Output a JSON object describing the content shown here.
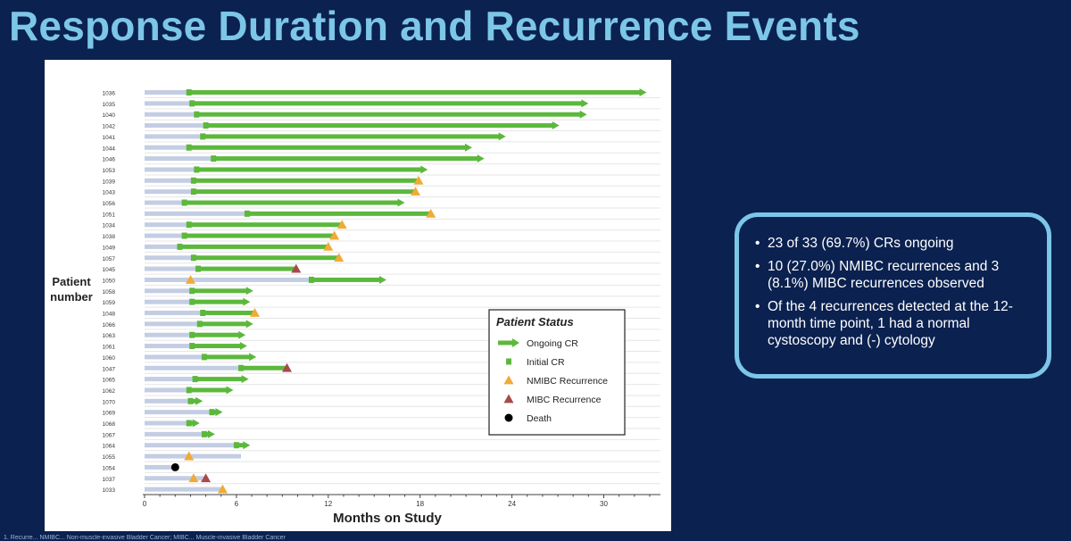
{
  "slide": {
    "title": "Response Duration and Recurrence Events",
    "footnote": "1. Recurre... NMIBC... Non-muscle-invasive Bladder Cancer; MIBC... Muscle-invasive Bladder Cancer"
  },
  "summary": {
    "bullets": [
      "23 of 33 (69.7%) CRs ongoing",
      "10 (27.0%) NMIBC recurrences and 3 (8.1%) MIBC recurrences observed",
      " Of the 4 recurrences detected at the 12-month time point, 1 had a normal cystoscopy and (-) cytology"
    ]
  },
  "colors": {
    "background": "#0b2150",
    "title": "#7cc6e8",
    "pre_cr_bar": "#c3cde3",
    "ongoing_cr": "#5cb83c",
    "initial_cr": "#5cb83c",
    "nmibc": "#f0ab36",
    "mibc": "#a84a4a",
    "death": "#000000"
  },
  "chart_data": {
    "type": "swimmer",
    "xlabel": "Months on Study",
    "ylabel": "Patient number",
    "xlim": [
      0,
      33
    ],
    "xticks": [
      0,
      6,
      12,
      18,
      24,
      30
    ],
    "legend": {
      "title": "Patient Status",
      "placement": "center-right",
      "entries": [
        {
          "key": "ongoing",
          "label": "Ongoing CR"
        },
        {
          "key": "initial",
          "label": "Initial CR"
        },
        {
          "key": "nmibc",
          "label": "NMIBC Recurrence"
        },
        {
          "key": "mibc",
          "label": "MIBC Recurrence"
        },
        {
          "key": "death",
          "label": "Death"
        }
      ]
    },
    "patients": [
      {
        "id": "1036",
        "cr": 2.9,
        "end": 32.8,
        "ongoing": true,
        "event": null,
        "event_at": null
      },
      {
        "id": "1035",
        "cr": 3.1,
        "end": 29.0,
        "ongoing": true,
        "event": null,
        "event_at": null
      },
      {
        "id": "1040",
        "cr": 3.4,
        "end": 28.9,
        "ongoing": true,
        "event": null,
        "event_at": null
      },
      {
        "id": "1042",
        "cr": 4.0,
        "end": 27.1,
        "ongoing": true,
        "event": null,
        "event_at": null
      },
      {
        "id": "1041",
        "cr": 3.8,
        "end": 23.6,
        "ongoing": true,
        "event": null,
        "event_at": null
      },
      {
        "id": "1044",
        "cr": 2.9,
        "end": 21.4,
        "ongoing": true,
        "event": null,
        "event_at": null
      },
      {
        "id": "1046",
        "cr": 4.5,
        "end": 22.2,
        "ongoing": true,
        "event": null,
        "event_at": null
      },
      {
        "id": "1053",
        "cr": 3.4,
        "end": 18.5,
        "ongoing": true,
        "event": null,
        "event_at": null
      },
      {
        "id": "1039",
        "cr": 3.2,
        "end": 17.9,
        "ongoing": false,
        "event": "nmibc",
        "event_at": 17.9
      },
      {
        "id": "1043",
        "cr": 3.2,
        "end": 17.7,
        "ongoing": false,
        "event": "nmibc",
        "event_at": 17.7
      },
      {
        "id": "1056",
        "cr": 2.6,
        "end": 17.0,
        "ongoing": true,
        "event": null,
        "event_at": null
      },
      {
        "id": "1051",
        "cr": 6.7,
        "end": 18.7,
        "ongoing": false,
        "event": "nmibc",
        "event_at": 18.7
      },
      {
        "id": "1034",
        "cr": 2.9,
        "end": 12.9,
        "ongoing": false,
        "event": "nmibc",
        "event_at": 12.9
      },
      {
        "id": "1038",
        "cr": 2.6,
        "end": 12.4,
        "ongoing": false,
        "event": "nmibc",
        "event_at": 12.4
      },
      {
        "id": "1049",
        "cr": 2.3,
        "end": 12.0,
        "ongoing": false,
        "event": "nmibc",
        "event_at": 12.0
      },
      {
        "id": "1057",
        "cr": 3.2,
        "end": 12.7,
        "ongoing": false,
        "event": "nmibc",
        "event_at": 12.7
      },
      {
        "id": "1045",
        "cr": 3.5,
        "end": 9.9,
        "ongoing": false,
        "event": "mibc",
        "event_at": 9.9
      },
      {
        "id": "1050",
        "cr": 10.9,
        "end": 15.8,
        "ongoing": true,
        "event": "nmibc",
        "event_at": 3.0
      },
      {
        "id": "1058",
        "cr": 3.1,
        "end": 7.1,
        "ongoing": true,
        "event": null,
        "event_at": null
      },
      {
        "id": "1059",
        "cr": 3.1,
        "end": 6.9,
        "ongoing": true,
        "event": null,
        "event_at": null
      },
      {
        "id": "1048",
        "cr": 3.8,
        "end": 7.2,
        "ongoing": false,
        "event": "nmibc",
        "event_at": 7.2
      },
      {
        "id": "1066",
        "cr": 3.6,
        "end": 7.1,
        "ongoing": true,
        "event": null,
        "event_at": null
      },
      {
        "id": "1063",
        "cr": 3.1,
        "end": 6.6,
        "ongoing": true,
        "event": null,
        "event_at": null
      },
      {
        "id": "1061",
        "cr": 3.1,
        "end": 6.7,
        "ongoing": true,
        "event": null,
        "event_at": null
      },
      {
        "id": "1060",
        "cr": 3.9,
        "end": 7.3,
        "ongoing": true,
        "event": null,
        "event_at": null
      },
      {
        "id": "1047",
        "cr": 6.3,
        "end": 9.3,
        "ongoing": false,
        "event": "mibc",
        "event_at": 9.3
      },
      {
        "id": "1065",
        "cr": 3.3,
        "end": 6.8,
        "ongoing": true,
        "event": null,
        "event_at": null
      },
      {
        "id": "1062",
        "cr": 2.9,
        "end": 5.8,
        "ongoing": true,
        "event": null,
        "event_at": null
      },
      {
        "id": "1070",
        "cr": 3.0,
        "end": 3.8,
        "ongoing": true,
        "event": null,
        "event_at": null
      },
      {
        "id": "1069",
        "cr": 4.4,
        "end": 5.1,
        "ongoing": true,
        "event": null,
        "event_at": null
      },
      {
        "id": "1068",
        "cr": 2.9,
        "end": 3.6,
        "ongoing": true,
        "event": null,
        "event_at": null
      },
      {
        "id": "1067",
        "cr": 3.9,
        "end": 4.6,
        "ongoing": true,
        "event": null,
        "event_at": null
      },
      {
        "id": "1064",
        "cr": 6.0,
        "end": 6.9,
        "ongoing": true,
        "event": null,
        "event_at": null
      },
      {
        "id": "1055",
        "cr": null,
        "end": 6.3,
        "ongoing": false,
        "event": "nmibc",
        "event_at": 2.9
      },
      {
        "id": "1054",
        "cr": null,
        "end": 2.0,
        "ongoing": false,
        "event": "death",
        "event_at": 2.0
      },
      {
        "id": "1037",
        "cr": null,
        "end": 4.0,
        "ongoing": false,
        "event": "nmibc+mibc",
        "event_at": 3.2,
        "event2_at": 4.0
      },
      {
        "id": "1033",
        "cr": null,
        "end": 5.1,
        "ongoing": false,
        "event": "nmibc",
        "event_at": 5.1
      }
    ]
  }
}
